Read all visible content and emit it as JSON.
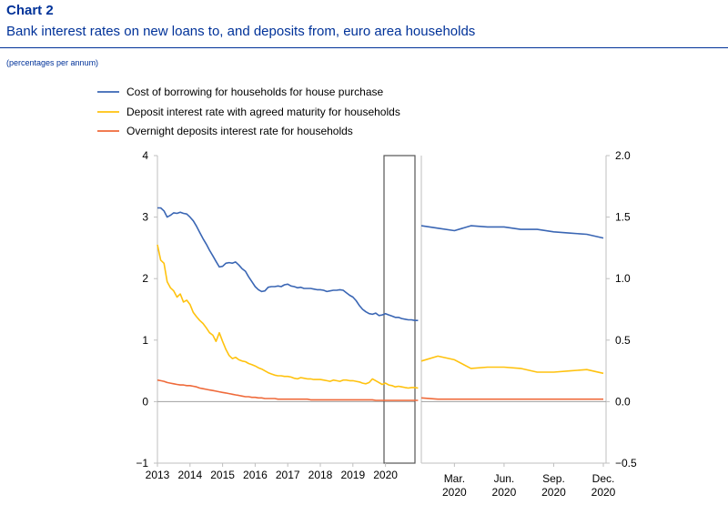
{
  "header": {
    "chart_label": "Chart 2",
    "title": "Bank interest rates on new loans to, and deposits from, euro area households",
    "units": "(percentages per annum)"
  },
  "chart_data": {
    "type": "line",
    "title": "Bank interest rates on new loans to, and deposits from, euro area households",
    "subtitle": "(percentages per annum)",
    "legend_position": "top-left",
    "colors": {
      "borrowing": "#3a66b4",
      "deposit_agreed": "#ffc20e",
      "overnight": "#ef6a3a",
      "zero_line": "#a0a0a0",
      "axis": "#bfbfbf"
    },
    "left_panel": {
      "y_axis": "left",
      "ylim": [
        -1,
        4
      ],
      "yticks": [
        "−1",
        "0",
        "1",
        "2",
        "3",
        "4"
      ],
      "x_tick_labels": [
        "2013",
        "2014",
        "2015",
        "2016",
        "2017",
        "2018",
        "2019",
        "2020"
      ],
      "x": [
        2013.0,
        2013.1,
        2013.2,
        2013.3,
        2013.4,
        2013.5,
        2013.6,
        2013.7,
        2013.8,
        2013.9,
        2014.0,
        2014.1,
        2014.2,
        2014.3,
        2014.4,
        2014.5,
        2014.6,
        2014.7,
        2014.8,
        2014.9,
        2015.0,
        2015.1,
        2015.2,
        2015.3,
        2015.4,
        2015.5,
        2015.6,
        2015.7,
        2015.8,
        2015.9,
        2016.0,
        2016.1,
        2016.2,
        2016.3,
        2016.4,
        2016.5,
        2016.6,
        2016.7,
        2016.8,
        2016.9,
        2017.0,
        2017.1,
        2017.2,
        2017.3,
        2017.4,
        2017.5,
        2017.6,
        2017.7,
        2017.8,
        2017.9,
        2018.0,
        2018.1,
        2018.2,
        2018.3,
        2018.4,
        2018.5,
        2018.6,
        2018.7,
        2018.8,
        2018.9,
        2019.0,
        2019.1,
        2019.2,
        2019.3,
        2019.4,
        2019.5,
        2019.6,
        2019.7,
        2019.8,
        2019.9,
        2020.0,
        2020.1,
        2020.2,
        2020.3,
        2020.4,
        2020.5,
        2020.6,
        2020.7,
        2020.8,
        2020.9,
        2021.0
      ],
      "series": [
        {
          "name": "Cost of borrowing for households for house purchase",
          "key": "borrowing",
          "values": [
            3.15,
            3.15,
            3.1,
            3.0,
            3.03,
            3.07,
            3.06,
            3.08,
            3.06,
            3.05,
            3.0,
            2.94,
            2.85,
            2.75,
            2.65,
            2.56,
            2.46,
            2.37,
            2.28,
            2.19,
            2.2,
            2.25,
            2.26,
            2.25,
            2.27,
            2.22,
            2.16,
            2.12,
            2.03,
            1.95,
            1.87,
            1.82,
            1.79,
            1.8,
            1.86,
            1.87,
            1.87,
            1.88,
            1.87,
            1.9,
            1.91,
            1.88,
            1.87,
            1.85,
            1.86,
            1.84,
            1.84,
            1.84,
            1.83,
            1.82,
            1.82,
            1.81,
            1.79,
            1.8,
            1.81,
            1.81,
            1.82,
            1.81,
            1.77,
            1.73,
            1.7,
            1.64,
            1.56,
            1.5,
            1.46,
            1.43,
            1.42,
            1.44,
            1.4,
            1.41,
            1.43,
            1.41,
            1.39,
            1.37,
            1.37,
            1.35,
            1.34,
            1.33,
            1.33,
            1.32,
            1.32
          ]
        },
        {
          "name": "Deposit interest rate with agreed maturity for households",
          "key": "deposit_agreed",
          "values": [
            2.55,
            2.3,
            2.25,
            1.95,
            1.85,
            1.8,
            1.7,
            1.75,
            1.62,
            1.65,
            1.58,
            1.45,
            1.38,
            1.32,
            1.27,
            1.2,
            1.12,
            1.08,
            0.98,
            1.12,
            0.98,
            0.85,
            0.75,
            0.7,
            0.72,
            0.68,
            0.66,
            0.65,
            0.62,
            0.6,
            0.58,
            0.55,
            0.53,
            0.5,
            0.47,
            0.45,
            0.43,
            0.42,
            0.42,
            0.41,
            0.41,
            0.4,
            0.38,
            0.37,
            0.39,
            0.38,
            0.37,
            0.37,
            0.36,
            0.36,
            0.36,
            0.35,
            0.34,
            0.33,
            0.35,
            0.34,
            0.33,
            0.35,
            0.35,
            0.34,
            0.34,
            0.33,
            0.32,
            0.3,
            0.29,
            0.31,
            0.37,
            0.34,
            0.31,
            0.28,
            0.3,
            0.27,
            0.26,
            0.24,
            0.25,
            0.24,
            0.23,
            0.22,
            0.23,
            0.23,
            0.22
          ]
        },
        {
          "name": "Overnight deposits interest rate for households",
          "key": "overnight",
          "values": [
            0.35,
            0.34,
            0.33,
            0.31,
            0.3,
            0.29,
            0.28,
            0.27,
            0.27,
            0.26,
            0.26,
            0.25,
            0.24,
            0.22,
            0.21,
            0.2,
            0.19,
            0.18,
            0.17,
            0.16,
            0.15,
            0.14,
            0.13,
            0.12,
            0.11,
            0.1,
            0.09,
            0.08,
            0.08,
            0.07,
            0.07,
            0.06,
            0.06,
            0.05,
            0.05,
            0.05,
            0.05,
            0.04,
            0.04,
            0.04,
            0.04,
            0.04,
            0.04,
            0.04,
            0.04,
            0.04,
            0.04,
            0.03,
            0.03,
            0.03,
            0.03,
            0.03,
            0.03,
            0.03,
            0.03,
            0.03,
            0.03,
            0.03,
            0.03,
            0.03,
            0.03,
            0.03,
            0.03,
            0.03,
            0.03,
            0.03,
            0.03,
            0.02,
            0.02,
            0.02,
            0.02,
            0.02,
            0.02,
            0.02,
            0.02,
            0.02,
            0.02,
            0.02,
            0.02,
            0.02,
            0.02
          ]
        }
      ]
    },
    "right_panel": {
      "y_axis": "right",
      "ylim": [
        -0.5,
        2.0
      ],
      "yticks": [
        "−0.5",
        "0.0",
        "0.5",
        "1.0",
        "1.5",
        "2.0"
      ],
      "x_tick_labels": [
        [
          "Mar.",
          "2020"
        ],
        [
          "Jun.",
          "2020"
        ],
        [
          "Sep.",
          "2020"
        ],
        [
          "Dec.",
          "2020"
        ]
      ],
      "x": [
        "Jan. 2020",
        "Feb. 2020",
        "Mar. 2020",
        "Apr. 2020",
        "May 2020",
        "Jun. 2020",
        "Jul. 2020",
        "Aug. 2020",
        "Sep. 2020",
        "Oct. 2020",
        "Nov. 2020",
        "Dec. 2020"
      ],
      "series": [
        {
          "name": "Cost of borrowing for households for house purchase",
          "key": "borrowing",
          "values": [
            1.43,
            1.41,
            1.39,
            1.43,
            1.42,
            1.42,
            1.4,
            1.4,
            1.38,
            1.37,
            1.36,
            1.33
          ]
        },
        {
          "name": "Deposit interest rate with agreed maturity for households",
          "key": "deposit_agreed",
          "values": [
            0.33,
            0.37,
            0.34,
            0.27,
            0.28,
            0.28,
            0.27,
            0.24,
            0.24,
            0.25,
            0.26,
            0.23
          ]
        },
        {
          "name": "Overnight deposits interest rate for households",
          "key": "overnight",
          "values": [
            0.03,
            0.02,
            0.02,
            0.02,
            0.02,
            0.02,
            0.02,
            0.02,
            0.02,
            0.02,
            0.02,
            0.02
          ]
        }
      ]
    }
  }
}
